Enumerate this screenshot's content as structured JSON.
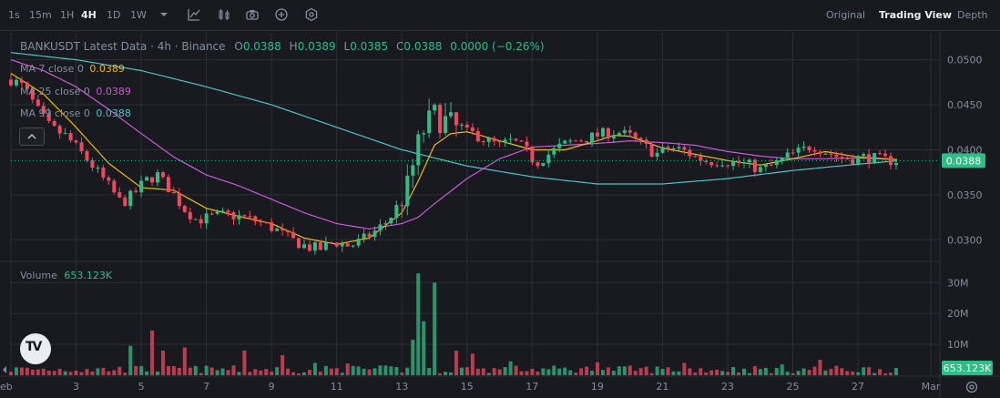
{
  "toolbar": {
    "timeframes": [
      "1s",
      "15m",
      "1H",
      "4H",
      "1D",
      "1W"
    ],
    "active_timeframe": "4H",
    "views": [
      "Original",
      "Trading View",
      "Depth"
    ],
    "active_view": "Trading View"
  },
  "legend": {
    "title": "BANKUSDT Latest Data · 4h · Binance",
    "o_label": "O",
    "o_value": "0.0388",
    "h_label": "H",
    "h_value": "0.0389",
    "l_label": "L",
    "l_value": "0.0385",
    "c_label": "C",
    "c_value": "0.0388",
    "change": "0.0000 (−0.26%)",
    "ma7_label": "MA 7 close 0",
    "ma7_value": "0.0389",
    "ma25_label": "MA 25 close 0",
    "ma25_value": "0.0389",
    "ma99_label": "MA 99 close 0",
    "ma99_value": "0.0388",
    "volume_label": "Volume",
    "volume_value": "653.123K"
  },
  "colors": {
    "up": "#2ebd85",
    "down": "#f6465d",
    "ma7": "#f0b90b",
    "ma25": "#c85bd6",
    "ma99": "#4fc2c4",
    "background": "#181a20",
    "grid": "#2b2f36"
  },
  "chart_data": [
    {
      "type": "candlestick",
      "title": "BANKUSDT Latest Data · 4h · Binance",
      "x_ticks": [
        "eb",
        "3",
        "5",
        "7",
        "9",
        "11",
        "13",
        "15",
        "17",
        "19",
        "21",
        "23",
        "25",
        "27",
        "Mar"
      ],
      "y_ticks": [
        "0.0500",
        "0.0450",
        "0.0400",
        "0.0350",
        "0.0300"
      ],
      "ylim": [
        0.0277,
        0.053
      ],
      "last_price": "0.0388",
      "x_start_day": 1.0,
      "x_end_day": 28.3,
      "close_anchors": [
        [
          1.0,
          0.0478
        ],
        [
          1.4,
          0.047
        ],
        [
          1.8,
          0.0445
        ],
        [
          2.2,
          0.0425
        ],
        [
          2.7,
          0.0415
        ],
        [
          3.2,
          0.0395
        ],
        [
          3.6,
          0.0378
        ],
        [
          4.0,
          0.036
        ],
        [
          4.4,
          0.034
        ],
        [
          4.8,
          0.0352
        ],
        [
          5.1,
          0.0365
        ],
        [
          5.5,
          0.0372
        ],
        [
          5.9,
          0.0355
        ],
        [
          6.3,
          0.0335
        ],
        [
          6.7,
          0.0322
        ],
        [
          7.1,
          0.0325
        ],
        [
          7.6,
          0.0328
        ],
        [
          8.1,
          0.0325
        ],
        [
          8.6,
          0.032
        ],
        [
          9.1,
          0.0312
        ],
        [
          9.6,
          0.03
        ],
        [
          10.1,
          0.0292
        ],
        [
          10.5,
          0.029
        ],
        [
          10.9,
          0.0298
        ],
        [
          11.4,
          0.0293
        ],
        [
          11.8,
          0.03
        ],
        [
          12.2,
          0.031
        ],
        [
          12.6,
          0.0322
        ],
        [
          12.9,
          0.034
        ],
        [
          13.2,
          0.036
        ],
        [
          13.45,
          0.04
        ],
        [
          13.7,
          0.0425
        ],
        [
          14.0,
          0.0438
        ],
        [
          14.4,
          0.043
        ],
        [
          14.8,
          0.042
        ],
        [
          15.2,
          0.0418
        ],
        [
          15.6,
          0.041
        ],
        [
          16.0,
          0.0405
        ],
        [
          16.4,
          0.041
        ],
        [
          16.8,
          0.04
        ],
        [
          17.1,
          0.0385
        ],
        [
          17.5,
          0.0395
        ],
        [
          17.9,
          0.0405
        ],
        [
          18.3,
          0.041
        ],
        [
          18.7,
          0.0413
        ],
        [
          19.2,
          0.0418
        ],
        [
          19.6,
          0.042
        ],
        [
          20.0,
          0.0415
        ],
        [
          20.4,
          0.0405
        ],
        [
          20.8,
          0.0395
        ],
        [
          21.2,
          0.0402
        ],
        [
          21.6,
          0.04
        ],
        [
          22.0,
          0.0392
        ],
        [
          22.4,
          0.0387
        ],
        [
          22.8,
          0.0388
        ],
        [
          23.2,
          0.0386
        ],
        [
          23.6,
          0.0384
        ],
        [
          24.0,
          0.0378
        ],
        [
          24.4,
          0.0383
        ],
        [
          24.8,
          0.0392
        ],
        [
          25.2,
          0.0398
        ],
        [
          25.6,
          0.0405
        ],
        [
          26.0,
          0.0398
        ],
        [
          26.4,
          0.0392
        ],
        [
          26.8,
          0.039
        ],
        [
          27.2,
          0.0392
        ],
        [
          27.6,
          0.039
        ],
        [
          28.0,
          0.0388
        ],
        [
          28.3,
          0.0388
        ]
      ],
      "ma7_anchors": [
        [
          1.0,
          0.0485
        ],
        [
          2.0,
          0.0462
        ],
        [
          3.0,
          0.0425
        ],
        [
          4.0,
          0.0385
        ],
        [
          5.0,
          0.0358
        ],
        [
          6.0,
          0.0355
        ],
        [
          7.0,
          0.0335
        ],
        [
          8.0,
          0.0326
        ],
        [
          9.0,
          0.0318
        ],
        [
          10.0,
          0.0302
        ],
        [
          11.0,
          0.0295
        ],
        [
          12.0,
          0.0302
        ],
        [
          13.0,
          0.033
        ],
        [
          13.5,
          0.0365
        ],
        [
          14.0,
          0.0405
        ],
        [
          14.5,
          0.0418
        ],
        [
          15.0,
          0.042
        ],
        [
          16.0,
          0.041
        ],
        [
          17.0,
          0.04
        ],
        [
          18.0,
          0.04
        ],
        [
          19.0,
          0.041
        ],
        [
          19.5,
          0.0416
        ],
        [
          20.0,
          0.0415
        ],
        [
          21.0,
          0.0402
        ],
        [
          22.0,
          0.0395
        ],
        [
          23.0,
          0.0388
        ],
        [
          24.0,
          0.0383
        ],
        [
          25.0,
          0.039
        ],
        [
          26.0,
          0.0398
        ],
        [
          27.0,
          0.0392
        ],
        [
          28.3,
          0.0389
        ]
      ],
      "ma25_anchors": [
        [
          1.0,
          0.05
        ],
        [
          2.0,
          0.0488
        ],
        [
          3.0,
          0.047
        ],
        [
          4.0,
          0.0445
        ],
        [
          5.0,
          0.0418
        ],
        [
          6.0,
          0.0392
        ],
        [
          7.0,
          0.0372
        ],
        [
          8.0,
          0.036
        ],
        [
          9.0,
          0.0345
        ],
        [
          10.0,
          0.033
        ],
        [
          11.0,
          0.0318
        ],
        [
          12.0,
          0.0312
        ],
        [
          13.0,
          0.0318
        ],
        [
          13.5,
          0.0325
        ],
        [
          14.0,
          0.034
        ],
        [
          15.0,
          0.0368
        ],
        [
          16.0,
          0.039
        ],
        [
          17.0,
          0.0403
        ],
        [
          18.0,
          0.0405
        ],
        [
          19.0,
          0.0407
        ],
        [
          20.0,
          0.041
        ],
        [
          21.0,
          0.0408
        ],
        [
          22.0,
          0.0405
        ],
        [
          23.0,
          0.0398
        ],
        [
          24.0,
          0.0393
        ],
        [
          25.0,
          0.039
        ],
        [
          26.0,
          0.039
        ],
        [
          27.0,
          0.0391
        ],
        [
          28.3,
          0.0389
        ]
      ],
      "ma99_anchors": [
        [
          1.0,
          0.0508
        ],
        [
          3.0,
          0.05
        ],
        [
          5.0,
          0.0488
        ],
        [
          7.0,
          0.047
        ],
        [
          9.0,
          0.045
        ],
        [
          11.0,
          0.0425
        ],
        [
          13.0,
          0.04
        ],
        [
          15.0,
          0.0382
        ],
        [
          17.0,
          0.037
        ],
        [
          19.0,
          0.0362
        ],
        [
          21.0,
          0.0362
        ],
        [
          23.0,
          0.0368
        ],
        [
          25.0,
          0.0377
        ],
        [
          27.0,
          0.0384
        ],
        [
          28.3,
          0.0388
        ]
      ]
    },
    {
      "type": "bar",
      "title": "Volume",
      "y_ticks": [
        "30M",
        "20M",
        "10M"
      ],
      "ylim": [
        0,
        36
      ],
      "unit": "M",
      "last_volume": "653.123K",
      "spikes": [
        [
          1.4,
          2.5
        ],
        [
          3.4,
          2.0
        ],
        [
          4.6,
          9.5
        ],
        [
          5.4,
          14.5
        ],
        [
          5.6,
          8.0
        ],
        [
          6.3,
          9.0
        ],
        [
          8.2,
          8.0
        ],
        [
          9.3,
          6.5
        ],
        [
          10.4,
          4.0
        ],
        [
          11.3,
          3.8
        ],
        [
          13.45,
          33.0
        ],
        [
          13.6,
          17.5
        ],
        [
          13.3,
          11.5
        ],
        [
          14.0,
          30.0
        ],
        [
          14.6,
          8.0
        ],
        [
          15.2,
          7.0
        ],
        [
          16.3,
          4.5
        ],
        [
          19.0,
          4.2
        ],
        [
          21.6,
          4.0
        ],
        [
          24.6,
          3.5
        ],
        [
          25.8,
          5.0
        ]
      ]
    }
  ]
}
